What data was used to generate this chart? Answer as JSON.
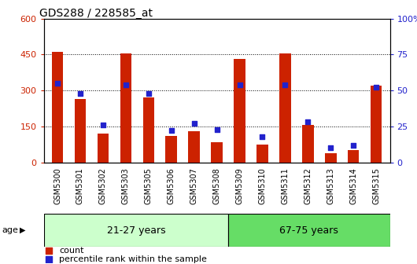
{
  "title": "GDS288 / 228585_at",
  "categories": [
    "GSM5300",
    "GSM5301",
    "GSM5302",
    "GSM5303",
    "GSM5305",
    "GSM5306",
    "GSM5307",
    "GSM5308",
    "GSM5309",
    "GSM5310",
    "GSM5311",
    "GSM5312",
    "GSM5313",
    "GSM5314",
    "GSM5315"
  ],
  "counts": [
    460,
    265,
    120,
    455,
    270,
    110,
    130,
    85,
    430,
    75,
    455,
    155,
    38,
    52,
    320
  ],
  "percentiles": [
    55,
    48,
    26,
    54,
    48,
    22,
    27,
    23,
    54,
    18,
    54,
    28,
    10,
    12,
    52
  ],
  "bar_color": "#cc2200",
  "dot_color": "#2222cc",
  "ylim_left": [
    0,
    600
  ],
  "ylim_right": [
    0,
    100
  ],
  "yticks_left": [
    0,
    150,
    300,
    450,
    600
  ],
  "ytick_labels_left": [
    "0",
    "150",
    "300",
    "450",
    "600"
  ],
  "yticks_right": [
    0,
    25,
    50,
    75,
    100
  ],
  "ytick_labels_right": [
    "0",
    "25",
    "50",
    "75",
    "100%"
  ],
  "group1_count": 8,
  "group2_count": 7,
  "group1_label": "21-27 years",
  "group2_label": "67-75 years",
  "age_label": "age",
  "legend1": "count",
  "legend2": "percentile rank within the sample",
  "bg_color": "#ffffff",
  "plot_bg": "#ffffff",
  "xticklabel_bg": "#cccccc",
  "group1_color": "#ccffcc",
  "group2_color": "#66dd66",
  "bar_width": 0.5
}
